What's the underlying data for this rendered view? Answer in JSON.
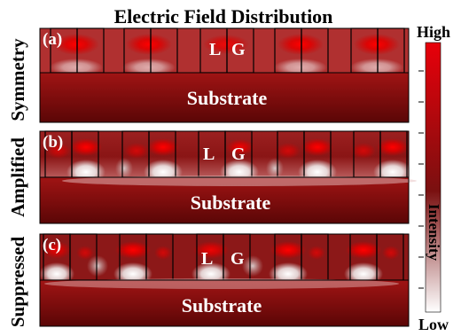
{
  "title": "Electric Field Distribution",
  "panels": [
    {
      "tag": "(a)",
      "row_label": "Symmetry",
      "loss_label": "L",
      "gain_label": "G",
      "substrate_label": "Substrate"
    },
    {
      "tag": "(b)",
      "row_label": "Amplified",
      "loss_label": "L",
      "gain_label": "G",
      "substrate_label": "Substrate"
    },
    {
      "tag": "(c)",
      "row_label": "Suppressed",
      "loss_label": "L",
      "gain_label": "G",
      "substrate_label": "Substrate"
    }
  ],
  "colorbar": {
    "high_label": "High",
    "low_label": "Low",
    "axis_label": "Intensity",
    "colors": {
      "high": "#e8000a",
      "mid": "#7a1010",
      "low": "#ffffff"
    }
  }
}
